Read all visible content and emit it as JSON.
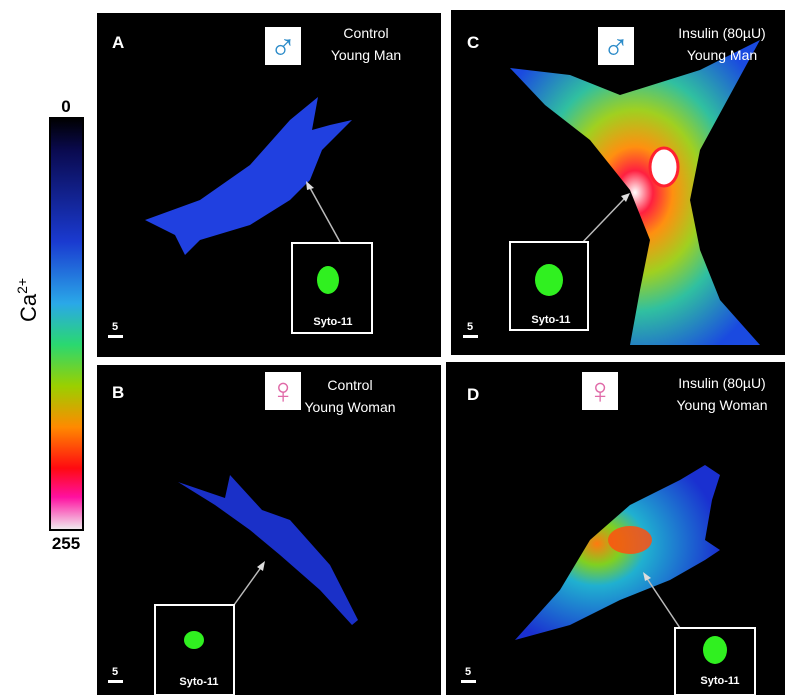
{
  "colorbar": {
    "min_label": "0",
    "max_label": "255",
    "title": "Ca",
    "title_sup": "2+"
  },
  "panels": [
    {
      "label": "A",
      "title_lines": [
        "Control",
        "Young Man"
      ],
      "symbol": "♂",
      "inset_label": "Syto-11",
      "scale_label": "5"
    },
    {
      "label": "B",
      "title_lines": [
        "Control",
        "Young Woman"
      ],
      "symbol": "♀",
      "inset_label": "Syto-11",
      "scale_label": "5"
    },
    {
      "label": "C",
      "title_lines": [
        "Insulin (80µU)",
        "Young Man"
      ],
      "symbol": "♂",
      "inset_label": "Syto-11",
      "scale_label": "5"
    },
    {
      "label": "D",
      "title_lines": [
        "Insulin (80µU)",
        "Young Woman"
      ],
      "symbol": "♀",
      "inset_label": "Syto-11",
      "scale_label": "5"
    }
  ]
}
